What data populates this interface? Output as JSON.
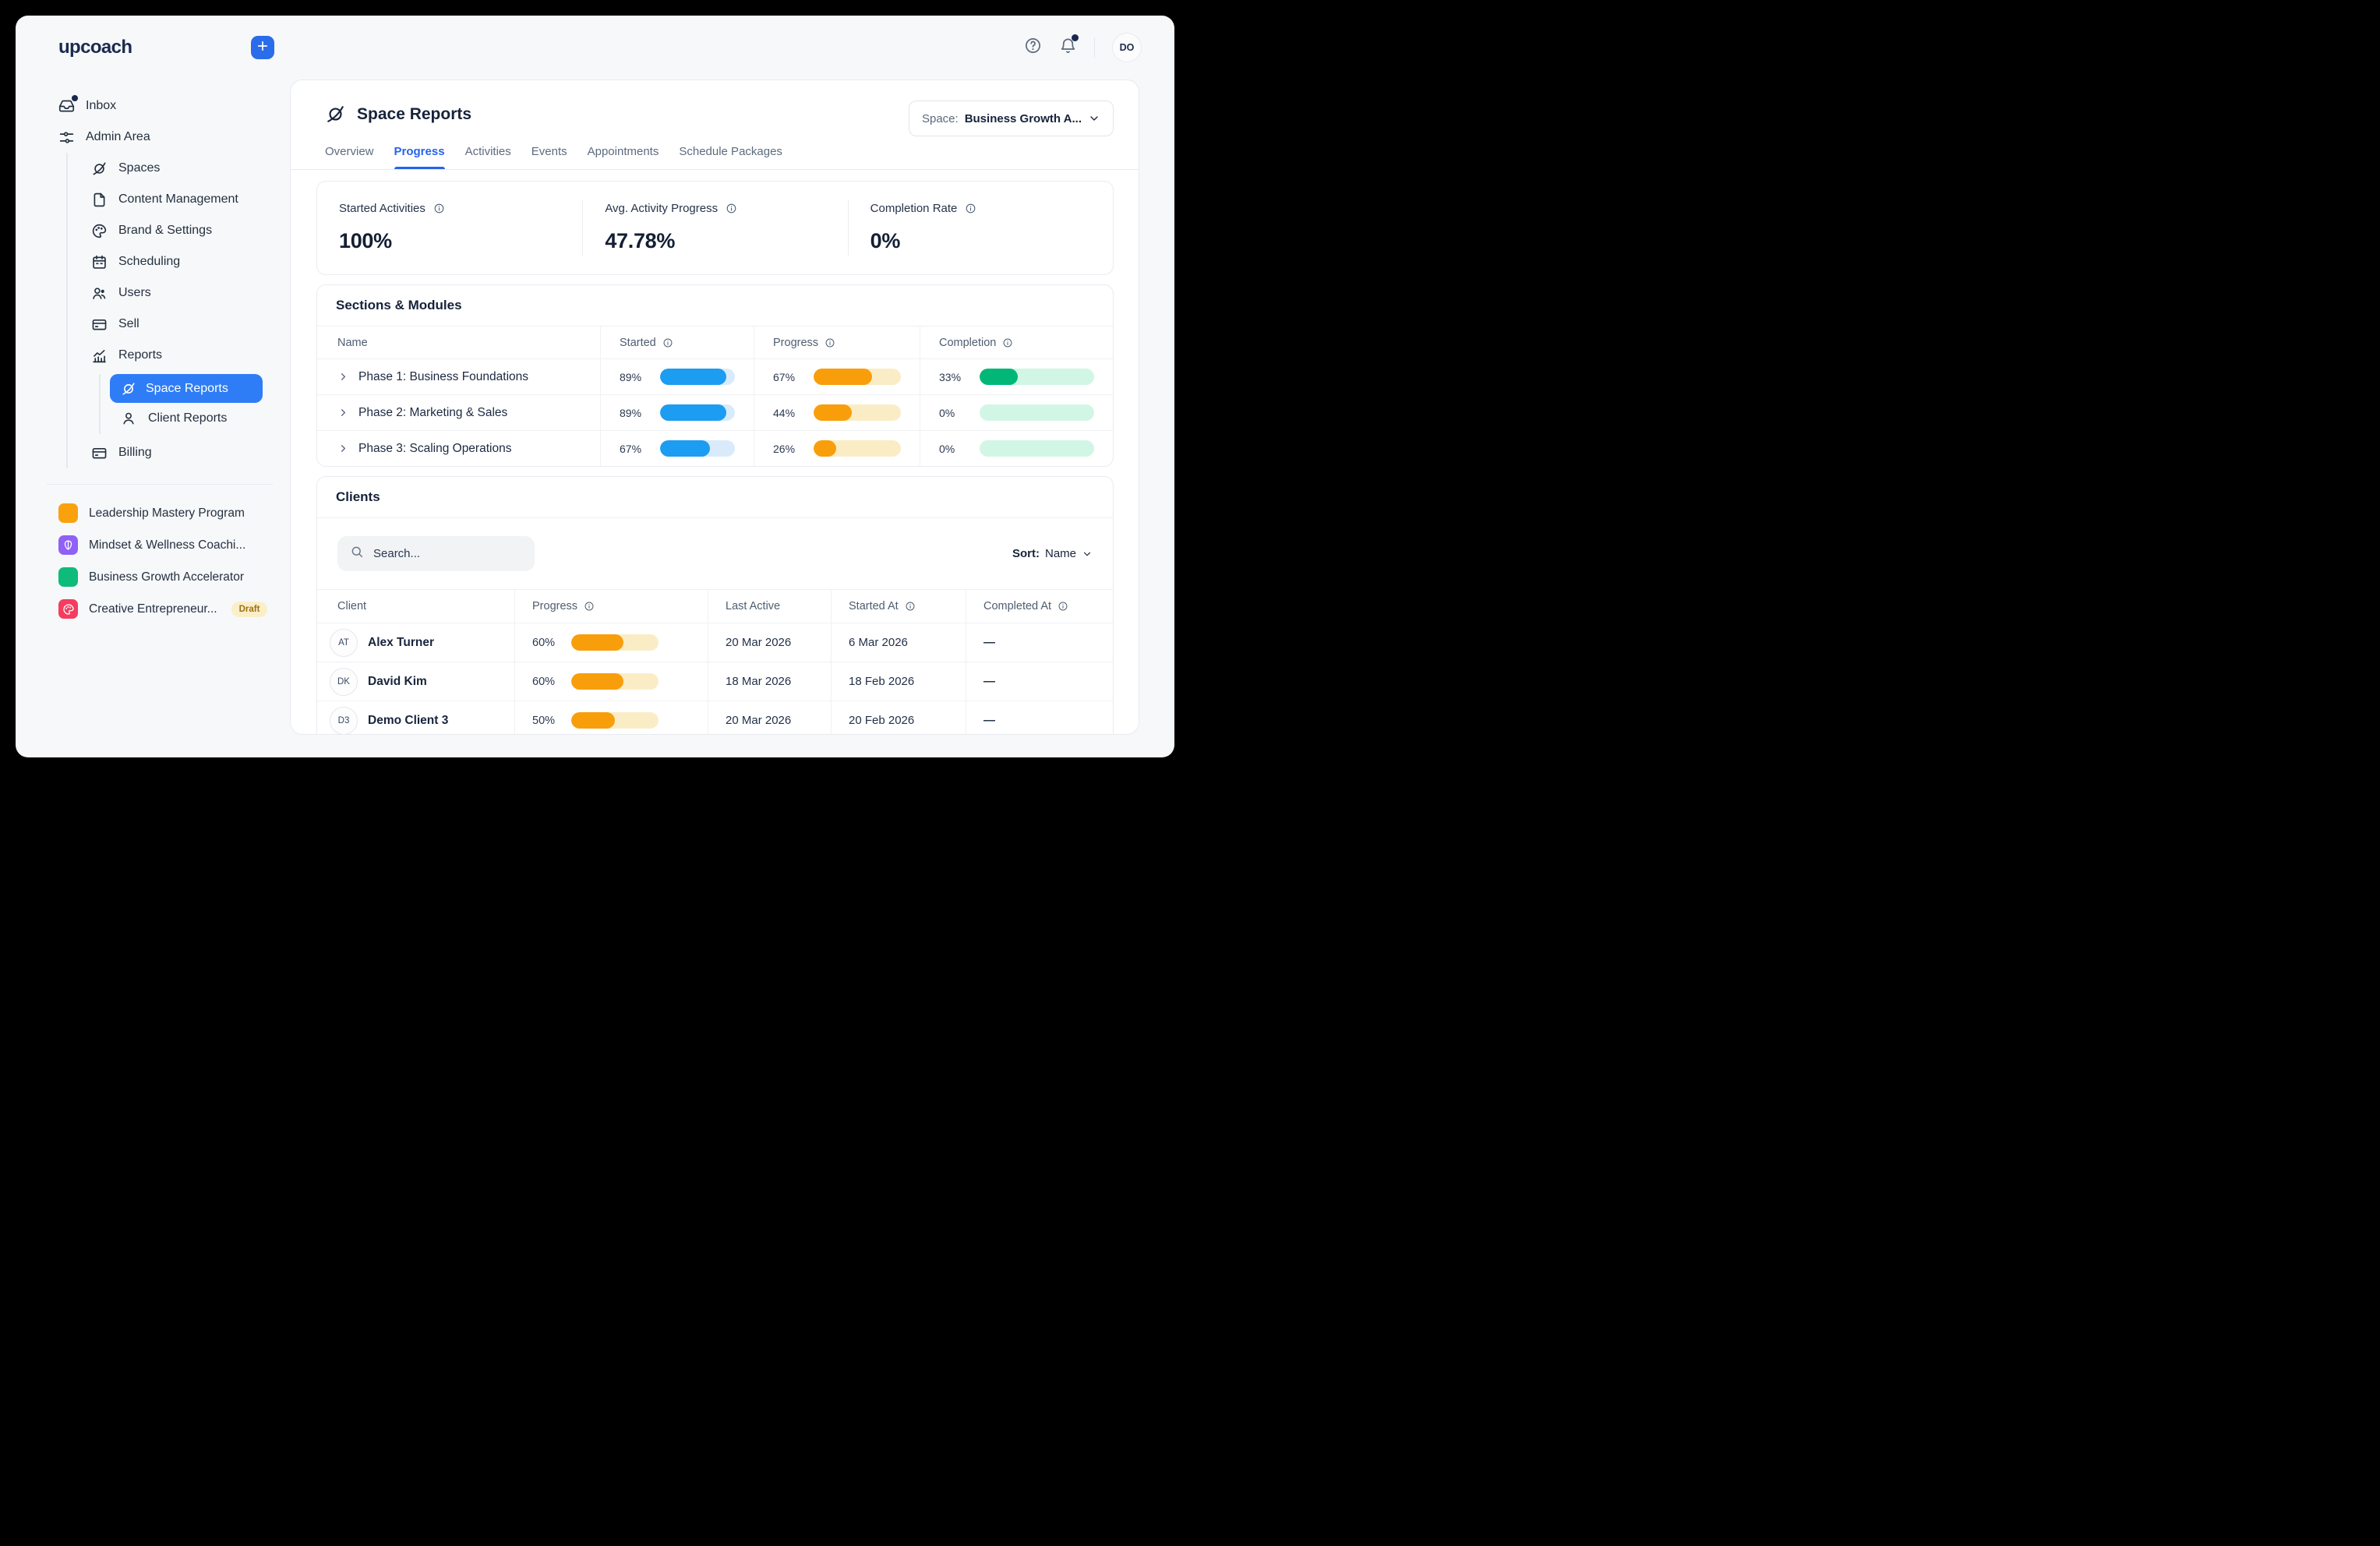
{
  "brand": {
    "logo": "upcoach"
  },
  "topbar": {
    "avatar_initials": "DO"
  },
  "sidebar": {
    "inbox": "Inbox",
    "admin_area": "Admin Area",
    "items": [
      {
        "label": "Spaces"
      },
      {
        "label": "Content Management"
      },
      {
        "label": "Brand & Settings"
      },
      {
        "label": "Scheduling"
      },
      {
        "label": "Users"
      },
      {
        "label": "Sell"
      },
      {
        "label": "Reports"
      }
    ],
    "reports_children": [
      {
        "label": "Space Reports"
      },
      {
        "label": "Client Reports"
      }
    ],
    "billing": "Billing",
    "programs": [
      {
        "label": "Leadership Mastery Program",
        "color": "#F9A20D",
        "badge": ""
      },
      {
        "label": "Mindset & Wellness Coachi...",
        "color": "#8F61F7",
        "badge": ""
      },
      {
        "label": "Business Growth Accelerator",
        "color": "#0EBB7B",
        "badge": ""
      },
      {
        "label": "Creative Entrepreneur...",
        "color": "#F43D5F",
        "badge": "Draft"
      }
    ]
  },
  "header": {
    "title": "Space Reports",
    "space_selector": {
      "prefix": "Space:",
      "value": "Business Growth A..."
    },
    "tabs": [
      "Overview",
      "Progress",
      "Activities",
      "Events",
      "Appointments",
      "Schedule Packages"
    ],
    "active_tab": "Progress"
  },
  "stats": [
    {
      "label": "Started Activities",
      "value": "100%"
    },
    {
      "label": "Avg. Activity Progress",
      "value": "47.78%"
    },
    {
      "label": "Completion Rate",
      "value": "0%"
    }
  ],
  "sections": {
    "title": "Sections & Modules",
    "columns": {
      "name": "Name",
      "started": "Started",
      "progress": "Progress",
      "completion": "Completion"
    },
    "rows": [
      {
        "name": "Phase 1: Business Foundations",
        "started": "89%",
        "progress": "67%",
        "completion": "33%"
      },
      {
        "name": "Phase 2: Marketing & Sales",
        "started": "89%",
        "progress": "44%",
        "completion": "0%"
      },
      {
        "name": "Phase 3: Scaling Operations",
        "started": "67%",
        "progress": "26%",
        "completion": "0%"
      }
    ]
  },
  "clients": {
    "title": "Clients",
    "search_placeholder": "Search...",
    "sort_label": "Sort:",
    "sort_value": "Name",
    "columns": {
      "client": "Client",
      "progress": "Progress",
      "last_active": "Last Active",
      "started_at": "Started At",
      "completed_at": "Completed At"
    },
    "rows": [
      {
        "initials": "AT",
        "name": "Alex Turner",
        "progress": "60%",
        "last_active": "20 Mar 2026",
        "started_at": "6 Mar 2026",
        "completed_at": "—"
      },
      {
        "initials": "DK",
        "name": "David Kim",
        "progress": "60%",
        "last_active": "18 Mar 2026",
        "started_at": "18 Feb 2026",
        "completed_at": "—"
      },
      {
        "initials": "D3",
        "name": "Demo Client 3",
        "progress": "50%",
        "last_active": "20 Mar 2026",
        "started_at": "20 Feb 2026",
        "completed_at": "—"
      }
    ]
  },
  "colors": {
    "accent_blue": "#2563EB",
    "bar_blue": "#1C9DF1",
    "bar_orange": "#F99E0B",
    "bar_green": "#00B778"
  }
}
